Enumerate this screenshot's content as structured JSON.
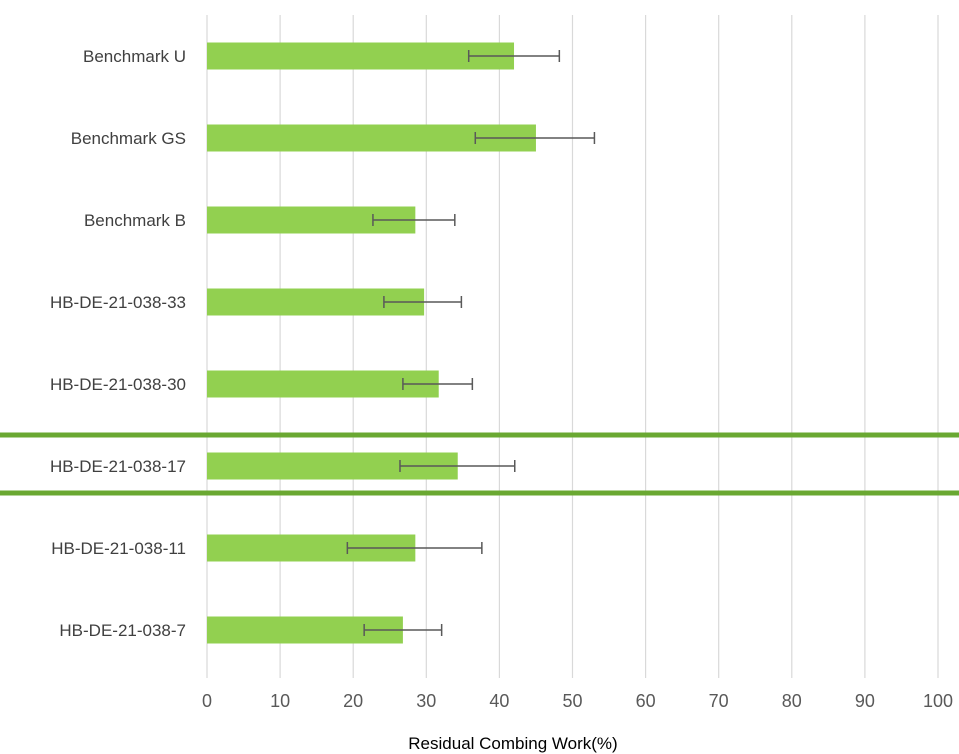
{
  "chart_data": {
    "type": "bar",
    "orientation": "horizontal",
    "categories": [
      "Benchmark U",
      "Benchmark GS",
      "Benchmark B",
      "HB-DE-21-038-33",
      "HB-DE-21-038-30",
      "HB-DE-21-038-17",
      "HB-DE-21-038-11",
      "HB-DE-21-038-7"
    ],
    "values": [
      42,
      45,
      28.5,
      29.7,
      31.7,
      34.3,
      28.5,
      26.8
    ],
    "error_low": [
      35.8,
      36.7,
      22.7,
      24.2,
      26.8,
      26.4,
      19.2,
      21.5
    ],
    "error_high": [
      48.2,
      53.0,
      33.9,
      34.8,
      36.3,
      42.1,
      37.6,
      32.1
    ],
    "xlabel": "Residual Combing Work(%)",
    "ylabel": "",
    "title": "",
    "xlim": [
      0,
      100
    ],
    "xticks": [
      0,
      10,
      20,
      30,
      40,
      50,
      60,
      70,
      80,
      90,
      100
    ],
    "grid": "vertical",
    "legend": "none",
    "highlighted_category": "HB-DE-21-038-17",
    "colors": {
      "bar": "#92d050",
      "highlight_line": "#6aa832",
      "gridline": "#d9d9d9",
      "error_bar": "#595959"
    }
  }
}
